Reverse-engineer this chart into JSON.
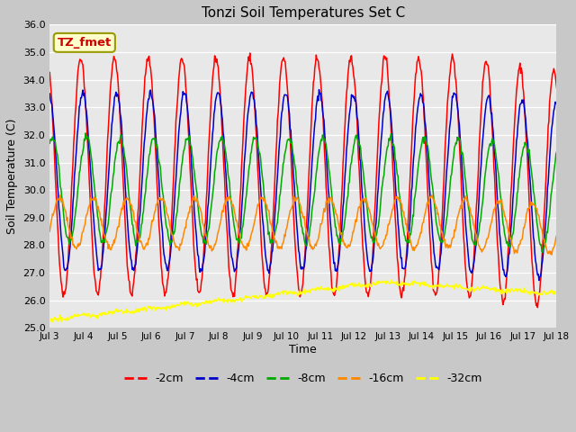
{
  "title": "Tonzi Soil Temperatures Set C",
  "xlabel": "Time",
  "ylabel": "Soil Temperature (C)",
  "ylim": [
    25.0,
    36.0
  ],
  "yticks": [
    25.0,
    26.0,
    27.0,
    28.0,
    29.0,
    30.0,
    31.0,
    32.0,
    33.0,
    34.0,
    35.0,
    36.0
  ],
  "xtick_labels": [
    "Jul 3",
    "Jul 4",
    "Jul 5",
    "Jul 6",
    "Jul 7",
    "Jul 8",
    "Jul 9",
    "Jul 10",
    "Jul 11",
    "Jul 12",
    "Jul 13",
    "Jul 14",
    "Jul 15",
    "Jul 16",
    "Jul 17",
    "Jul 18"
  ],
  "colors": {
    "-2cm": "#ff0000",
    "-4cm": "#0000cc",
    "-8cm": "#00aa00",
    "-16cm": "#ff8800",
    "-32cm": "#ffff00"
  },
  "legend_labels": [
    "-2cm",
    "-4cm",
    "-8cm",
    "-16cm",
    "-32cm"
  ],
  "annotation_text": "TZ_fmet",
  "annotation_color": "#cc0000",
  "annotation_bg": "#ffffcc",
  "annotation_border": "#999900",
  "fig_bg_color": "#c8c8c8",
  "plot_bg_color": "#e8e8e8"
}
